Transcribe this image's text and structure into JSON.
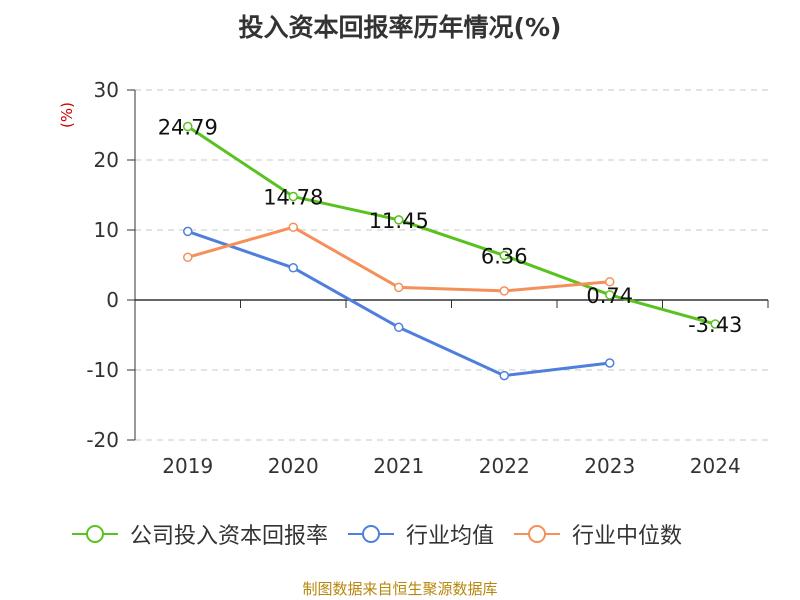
{
  "chart_data": {
    "type": "line",
    "title": "投入资本回报率历年情况(%)",
    "ylabel": "(%)",
    "ylim": [
      -20,
      30
    ],
    "yticks": [
      30,
      20,
      10,
      0,
      -10,
      -20
    ],
    "categories": [
      "2019",
      "2020",
      "2021",
      "2022",
      "2023",
      "2024"
    ],
    "grid": true,
    "legend_position": "bottom",
    "series": [
      {
        "name": "公司投入资本回报率",
        "color": "#5ac21e",
        "values": [
          24.79,
          14.78,
          11.45,
          6.36,
          0.74,
          -3.43
        ],
        "labels": [
          "24.79",
          "14.78",
          "11.45",
          "6.36",
          "0.74",
          "-3.43"
        ]
      },
      {
        "name": "行业均值",
        "color": "#4f7fdc",
        "values": [
          9.8,
          4.6,
          -3.9,
          -10.8,
          -9.0,
          null
        ]
      },
      {
        "name": "行业中位数",
        "color": "#f5905a",
        "values": [
          6.1,
          10.4,
          1.8,
          1.3,
          2.6,
          null
        ]
      }
    ]
  },
  "source": "制图数据来自恒生聚源数据库"
}
